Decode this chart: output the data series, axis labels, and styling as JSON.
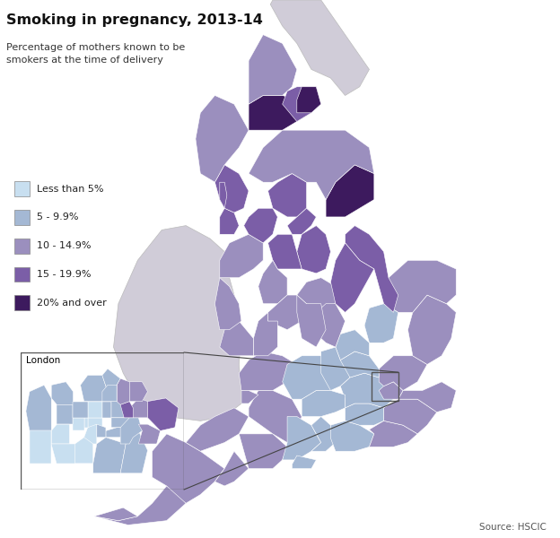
{
  "title": "Smoking in pregnancy, 2013-14",
  "subtitle": "Percentage of mothers known to be\nsmokers at the time of delivery",
  "source": "Source: HSCIC",
  "legend_labels": [
    "Less than 5%",
    "5 - 9.9%",
    "10 - 14.9%",
    "15 - 19.9%",
    "20% and over"
  ],
  "legend_colors": [
    "#c8dff0",
    "#a4b8d4",
    "#9b8fbe",
    "#7b5ea7",
    "#3d1a5e"
  ],
  "background_color": "#ffffff",
  "wales_scotland_color": "#d0ccd8",
  "border_color": "#ffffff",
  "figsize": [
    6.24,
    6.0
  ],
  "dpi": 100
}
